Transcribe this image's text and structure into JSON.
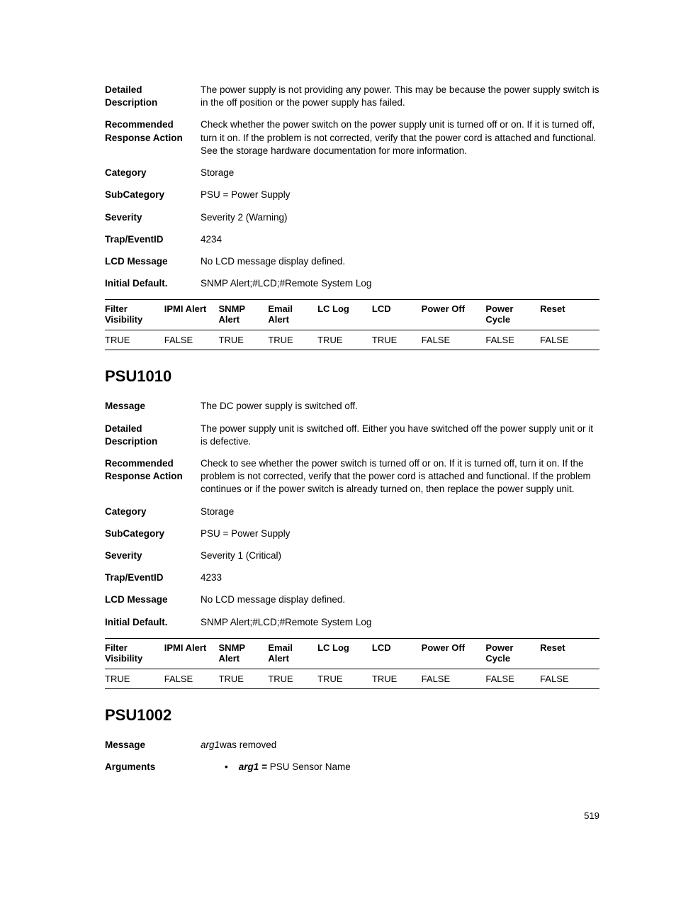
{
  "section1": {
    "rows": [
      {
        "label": "Detailed Description",
        "value": "The power supply is not providing any power. This may be because the power supply switch is in the off position or the power supply has failed."
      },
      {
        "label": "Recommended Response Action",
        "value": "Check whether the power switch on the power supply unit is turned off or on. If it is turned off, turn it on. If the problem is not corrected, verify that the power cord is attached and functional. See the storage hardware documentation for more information."
      },
      {
        "label": "Category",
        "value": "Storage"
      },
      {
        "label": "SubCategory",
        "value": "PSU = Power Supply"
      },
      {
        "label": "Severity",
        "value": "Severity 2 (Warning)"
      },
      {
        "label": "Trap/EventID",
        "value": "4234"
      },
      {
        "label": "LCD Message",
        "value": "No LCD message display defined."
      },
      {
        "label": "Initial Default.",
        "value": "SNMP Alert;#LCD;#Remote System Log"
      }
    ],
    "table": {
      "headers": [
        "Filter Visibility",
        "IPMI Alert",
        "SNMP Alert",
        "Email Alert",
        "LC Log",
        "LCD",
        "Power Off",
        "Power Cycle",
        "Reset"
      ],
      "row": [
        "TRUE",
        "FALSE",
        "TRUE",
        "TRUE",
        "TRUE",
        "TRUE",
        "FALSE",
        "FALSE",
        "FALSE"
      ]
    }
  },
  "section2": {
    "heading": "PSU1010",
    "rows": [
      {
        "label": "Message",
        "value": "The DC power supply is switched off."
      },
      {
        "label": "Detailed Description",
        "value": "The power supply unit is switched off. Either you have switched off the power supply unit or it is defective."
      },
      {
        "label": "Recommended Response Action",
        "value": "Check to see whether the power switch is turned off or on. If it is turned off, turn it on. If the problem is not corrected, verify that the power cord is attached and functional. If the problem continues or if the power switch is already turned on, then replace the power supply unit."
      },
      {
        "label": "Category",
        "value": "Storage"
      },
      {
        "label": "SubCategory",
        "value": "PSU = Power Supply"
      },
      {
        "label": "Severity",
        "value": "Severity 1 (Critical)"
      },
      {
        "label": "Trap/EventID",
        "value": "4233"
      },
      {
        "label": "LCD Message",
        "value": "No LCD message display defined."
      },
      {
        "label": "Initial Default.",
        "value": "SNMP Alert;#LCD;#Remote System Log"
      }
    ],
    "table": {
      "headers": [
        "Filter Visibility",
        "IPMI Alert",
        "SNMP Alert",
        "Email Alert",
        "LC Log",
        "LCD",
        "Power Off",
        "Power Cycle",
        "Reset"
      ],
      "row": [
        "TRUE",
        "FALSE",
        "TRUE",
        "TRUE",
        "TRUE",
        "TRUE",
        "FALSE",
        "FALSE",
        "FALSE"
      ]
    }
  },
  "section3": {
    "heading": "PSU1002",
    "message_label": "Message",
    "message_arg": "arg1",
    "message_suffix": "was removed",
    "arguments_label": "Arguments",
    "arg_name": "arg1 =",
    "arg_desc": "PSU Sensor Name"
  },
  "page_number": "519",
  "col_widths": [
    "12%",
    "11%",
    "10%",
    "10%",
    "11%",
    "10%",
    "13%",
    "11%",
    "12%"
  ]
}
